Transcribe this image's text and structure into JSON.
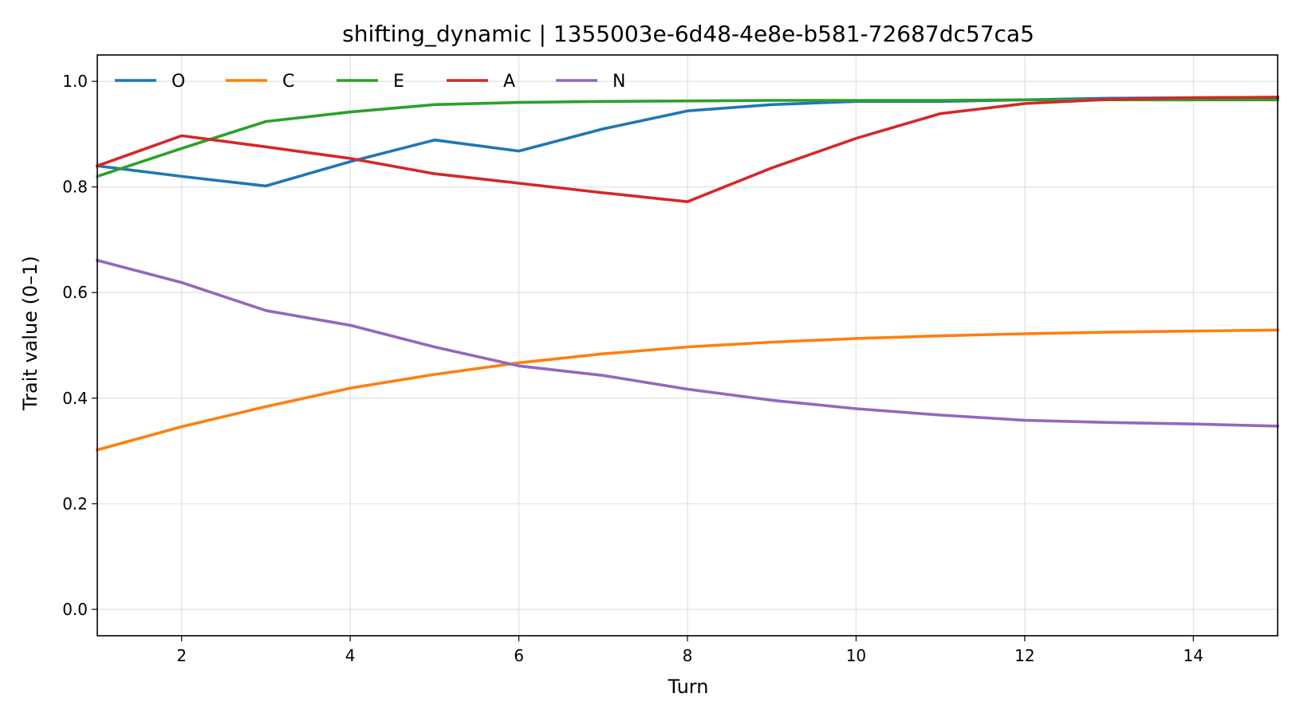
{
  "chart_data": {
    "type": "line",
    "title": "shifting_dynamic | 1355003e-6d48-4e8e-b581-72687dc57ca5",
    "xlabel": "Turn",
    "ylabel": "Trait value (0–1)",
    "xlim": [
      1,
      15
    ],
    "ylim": [
      -0.05,
      1.05
    ],
    "xticks": [
      2,
      4,
      6,
      8,
      10,
      12,
      14
    ],
    "yticks": [
      0.0,
      0.2,
      0.4,
      0.6,
      0.8,
      1.0
    ],
    "xtick_labels": [
      "2",
      "4",
      "6",
      "8",
      "10",
      "12",
      "14"
    ],
    "ytick_labels": [
      "0.0",
      "0.2",
      "0.4",
      "0.6",
      "0.8",
      "1.0"
    ],
    "grid": true,
    "legend_position": "top-left",
    "x": [
      1,
      2,
      3,
      4,
      5,
      6,
      7,
      8,
      9,
      10,
      11,
      12,
      13,
      14,
      15
    ],
    "series": [
      {
        "name": "O",
        "color": "#1f77b4",
        "values": [
          0.84,
          0.82,
          0.802,
          0.848,
          0.889,
          0.868,
          0.91,
          0.944,
          0.956,
          0.962,
          0.962,
          0.965,
          0.968,
          0.969,
          0.97
        ]
      },
      {
        "name": "C",
        "color": "#ff7f0e",
        "values": [
          0.302,
          0.346,
          0.384,
          0.419,
          0.445,
          0.467,
          0.484,
          0.497,
          0.506,
          0.513,
          0.518,
          0.522,
          0.525,
          0.527,
          0.529
        ]
      },
      {
        "name": "E",
        "color": "#2ca02c",
        "values": [
          0.82,
          0.873,
          0.924,
          0.942,
          0.956,
          0.96,
          0.962,
          0.963,
          0.964,
          0.964,
          0.964,
          0.965,
          0.965,
          0.965,
          0.965
        ]
      },
      {
        "name": "A",
        "color": "#d62728",
        "values": [
          0.84,
          0.897,
          0.876,
          0.854,
          0.825,
          0.807,
          0.789,
          0.772,
          0.836,
          0.892,
          0.939,
          0.958,
          0.966,
          0.969,
          0.97
        ]
      },
      {
        "name": "N",
        "color": "#9467bd",
        "values": [
          0.661,
          0.619,
          0.566,
          0.538,
          0.497,
          0.461,
          0.443,
          0.417,
          0.396,
          0.38,
          0.368,
          0.358,
          0.354,
          0.351,
          0.347
        ]
      }
    ]
  }
}
